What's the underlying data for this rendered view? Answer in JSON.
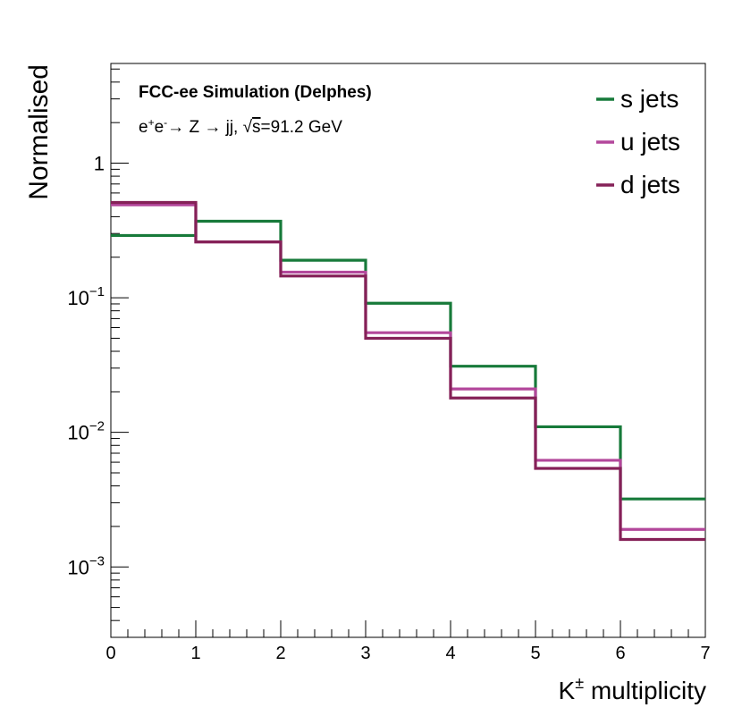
{
  "chart_data": {
    "type": "step-histogram",
    "title": "FCC-ee Simulation (Delphes)",
    "process": {
      "prefix": "e",
      "plus": "+",
      "minus": "-",
      "mid": "→ Z → jj, √",
      "s": "s",
      "tail": "=91.2 GeV"
    },
    "xlabel": {
      "base": "K",
      "sup": "±",
      "rest": " multiplicity"
    },
    "ylabel": "Normalised",
    "xlim": [
      0,
      7
    ],
    "ylim": [
      0.0003,
      5.5
    ],
    "yscale": "log",
    "x_ticks": [
      "0",
      "1",
      "2",
      "3",
      "4",
      "5",
      "6",
      "7"
    ],
    "y_ticks": [
      {
        "value": 1,
        "base": "1",
        "exp": ""
      },
      {
        "value": 0.1,
        "base": "10",
        "exp": "−1"
      },
      {
        "value": 0.01,
        "base": "10",
        "exp": "−2"
      },
      {
        "value": 0.001,
        "base": "10",
        "exp": "−3"
      }
    ],
    "bin_edges": [
      0,
      1,
      2,
      3,
      4,
      5,
      6,
      7
    ],
    "series": [
      {
        "name": "s jets",
        "color": "#177a3a",
        "values": [
          0.29,
          0.37,
          0.19,
          0.091,
          0.031,
          0.011,
          0.0032
        ]
      },
      {
        "name": "u jets",
        "color": "#b3479b",
        "values": [
          0.49,
          0.26,
          0.155,
          0.055,
          0.021,
          0.0062,
          0.0019
        ]
      },
      {
        "name": "d jets",
        "color": "#852158",
        "values": [
          0.51,
          0.26,
          0.145,
          0.05,
          0.018,
          0.0054,
          0.0016
        ]
      }
    ],
    "legend_position": "top-right"
  }
}
